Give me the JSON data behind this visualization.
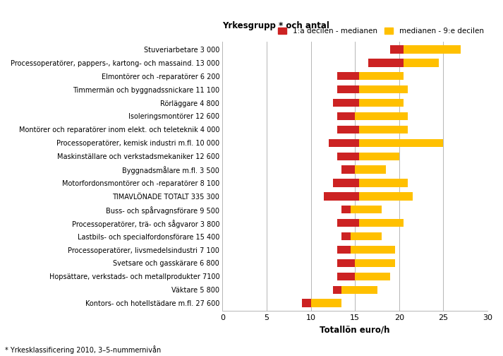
{
  "categories": [
    "Stuveriarbetare 3 000",
    "Processoperatörer, pappers-, kartong- och massaind. 13 000",
    "Elmontörer och -reparatörer 6 200",
    "Timmermän och byggnadssnickare 11 100",
    "Rörläggare 4 800",
    "Isoleringsmontörer 12 600",
    "Montörer och reparatörer inom elekt. och teleteknik 4 000",
    "Processoperatörer, kemisk industri m.fl. 10 000",
    "Maskinställare och verkstadsmekaniker 12 600",
    "Byggnadsmålare m.fl. 3 500",
    "Motorfordonsmontörer och -reparatörer 8 100",
    "TIMAVLÖNADE TOTALT 335 300",
    "Buss- och spårvagnsförare 9 500",
    "Processoperatörer, trä- och sågvaror 3 800",
    "Lastbils- och specialfordonsförare 15 400",
    "Processoperatörer, livsmedelsindustri 7 100",
    "Svetsare och gasskärare 6 800",
    "Hopsättare, verkstads- och metallprodukter 7100",
    "Väktare 5 800",
    "Kontors- och hotellstädare m.fl. 27 600"
  ],
  "d1": [
    19.0,
    16.5,
    13.0,
    13.0,
    12.5,
    13.0,
    13.0,
    12.0,
    13.0,
    13.5,
    12.5,
    11.5,
    13.5,
    13.0,
    13.5,
    13.0,
    13.0,
    13.0,
    12.5,
    9.0
  ],
  "median": [
    20.5,
    20.5,
    15.5,
    15.5,
    15.5,
    15.0,
    15.5,
    15.5,
    15.5,
    15.0,
    15.5,
    15.5,
    14.5,
    15.5,
    14.5,
    14.5,
    15.0,
    15.0,
    13.5,
    10.0
  ],
  "d9": [
    27.0,
    24.5,
    20.5,
    21.0,
    20.5,
    21.0,
    21.0,
    25.0,
    20.0,
    18.5,
    21.0,
    21.5,
    18.0,
    20.5,
    18.0,
    19.5,
    19.5,
    19.0,
    17.5,
    13.5
  ],
  "color_red": "#cc2222",
  "color_yellow": "#ffc000",
  "title": "Yrkesgrupp * och antal",
  "xlabel": "Totallön euro/h",
  "legend_red": "1:a decilen - medianen",
  "legend_yellow": "medianen - 9:e decilen",
  "xlim": [
    0,
    30
  ],
  "xticks": [
    0,
    5,
    10,
    15,
    20,
    25,
    30
  ],
  "footnote": "* Yrkesklassificering 2010, 3–5-nummernivån",
  "bar_height": 0.6
}
